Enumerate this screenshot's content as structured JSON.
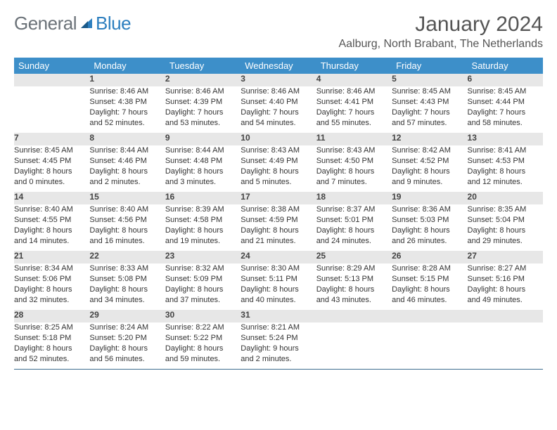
{
  "brand": {
    "part1": "General",
    "part2": "Blue"
  },
  "title": "January 2024",
  "location": "Aalburg, North Brabant, The Netherlands",
  "colors": {
    "header_bg": "#3d8fc9",
    "daynum_bg": "#e7e7e7",
    "rule": "#3d6e8f",
    "brand_gray": "#6b7278",
    "brand_blue": "#2d7fbf"
  },
  "weekdays": [
    "Sunday",
    "Monday",
    "Tuesday",
    "Wednesday",
    "Thursday",
    "Friday",
    "Saturday"
  ],
  "weeks": [
    [
      null,
      {
        "d": "1",
        "sr": "8:46 AM",
        "ss": "4:38 PM",
        "dl": "7 hours and 52 minutes."
      },
      {
        "d": "2",
        "sr": "8:46 AM",
        "ss": "4:39 PM",
        "dl": "7 hours and 53 minutes."
      },
      {
        "d": "3",
        "sr": "8:46 AM",
        "ss": "4:40 PM",
        "dl": "7 hours and 54 minutes."
      },
      {
        "d": "4",
        "sr": "8:46 AM",
        "ss": "4:41 PM",
        "dl": "7 hours and 55 minutes."
      },
      {
        "d": "5",
        "sr": "8:45 AM",
        "ss": "4:43 PM",
        "dl": "7 hours and 57 minutes."
      },
      {
        "d": "6",
        "sr": "8:45 AM",
        "ss": "4:44 PM",
        "dl": "7 hours and 58 minutes."
      }
    ],
    [
      {
        "d": "7",
        "sr": "8:45 AM",
        "ss": "4:45 PM",
        "dl": "8 hours and 0 minutes."
      },
      {
        "d": "8",
        "sr": "8:44 AM",
        "ss": "4:46 PM",
        "dl": "8 hours and 2 minutes."
      },
      {
        "d": "9",
        "sr": "8:44 AM",
        "ss": "4:48 PM",
        "dl": "8 hours and 3 minutes."
      },
      {
        "d": "10",
        "sr": "8:43 AM",
        "ss": "4:49 PM",
        "dl": "8 hours and 5 minutes."
      },
      {
        "d": "11",
        "sr": "8:43 AM",
        "ss": "4:50 PM",
        "dl": "8 hours and 7 minutes."
      },
      {
        "d": "12",
        "sr": "8:42 AM",
        "ss": "4:52 PM",
        "dl": "8 hours and 9 minutes."
      },
      {
        "d": "13",
        "sr": "8:41 AM",
        "ss": "4:53 PM",
        "dl": "8 hours and 12 minutes."
      }
    ],
    [
      {
        "d": "14",
        "sr": "8:40 AM",
        "ss": "4:55 PM",
        "dl": "8 hours and 14 minutes."
      },
      {
        "d": "15",
        "sr": "8:40 AM",
        "ss": "4:56 PM",
        "dl": "8 hours and 16 minutes."
      },
      {
        "d": "16",
        "sr": "8:39 AM",
        "ss": "4:58 PM",
        "dl": "8 hours and 19 minutes."
      },
      {
        "d": "17",
        "sr": "8:38 AM",
        "ss": "4:59 PM",
        "dl": "8 hours and 21 minutes."
      },
      {
        "d": "18",
        "sr": "8:37 AM",
        "ss": "5:01 PM",
        "dl": "8 hours and 24 minutes."
      },
      {
        "d": "19",
        "sr": "8:36 AM",
        "ss": "5:03 PM",
        "dl": "8 hours and 26 minutes."
      },
      {
        "d": "20",
        "sr": "8:35 AM",
        "ss": "5:04 PM",
        "dl": "8 hours and 29 minutes."
      }
    ],
    [
      {
        "d": "21",
        "sr": "8:34 AM",
        "ss": "5:06 PM",
        "dl": "8 hours and 32 minutes."
      },
      {
        "d": "22",
        "sr": "8:33 AM",
        "ss": "5:08 PM",
        "dl": "8 hours and 34 minutes."
      },
      {
        "d": "23",
        "sr": "8:32 AM",
        "ss": "5:09 PM",
        "dl": "8 hours and 37 minutes."
      },
      {
        "d": "24",
        "sr": "8:30 AM",
        "ss": "5:11 PM",
        "dl": "8 hours and 40 minutes."
      },
      {
        "d": "25",
        "sr": "8:29 AM",
        "ss": "5:13 PM",
        "dl": "8 hours and 43 minutes."
      },
      {
        "d": "26",
        "sr": "8:28 AM",
        "ss": "5:15 PM",
        "dl": "8 hours and 46 minutes."
      },
      {
        "d": "27",
        "sr": "8:27 AM",
        "ss": "5:16 PM",
        "dl": "8 hours and 49 minutes."
      }
    ],
    [
      {
        "d": "28",
        "sr": "8:25 AM",
        "ss": "5:18 PM",
        "dl": "8 hours and 52 minutes."
      },
      {
        "d": "29",
        "sr": "8:24 AM",
        "ss": "5:20 PM",
        "dl": "8 hours and 56 minutes."
      },
      {
        "d": "30",
        "sr": "8:22 AM",
        "ss": "5:22 PM",
        "dl": "8 hours and 59 minutes."
      },
      {
        "d": "31",
        "sr": "8:21 AM",
        "ss": "5:24 PM",
        "dl": "9 hours and 2 minutes."
      },
      null,
      null,
      null
    ]
  ]
}
